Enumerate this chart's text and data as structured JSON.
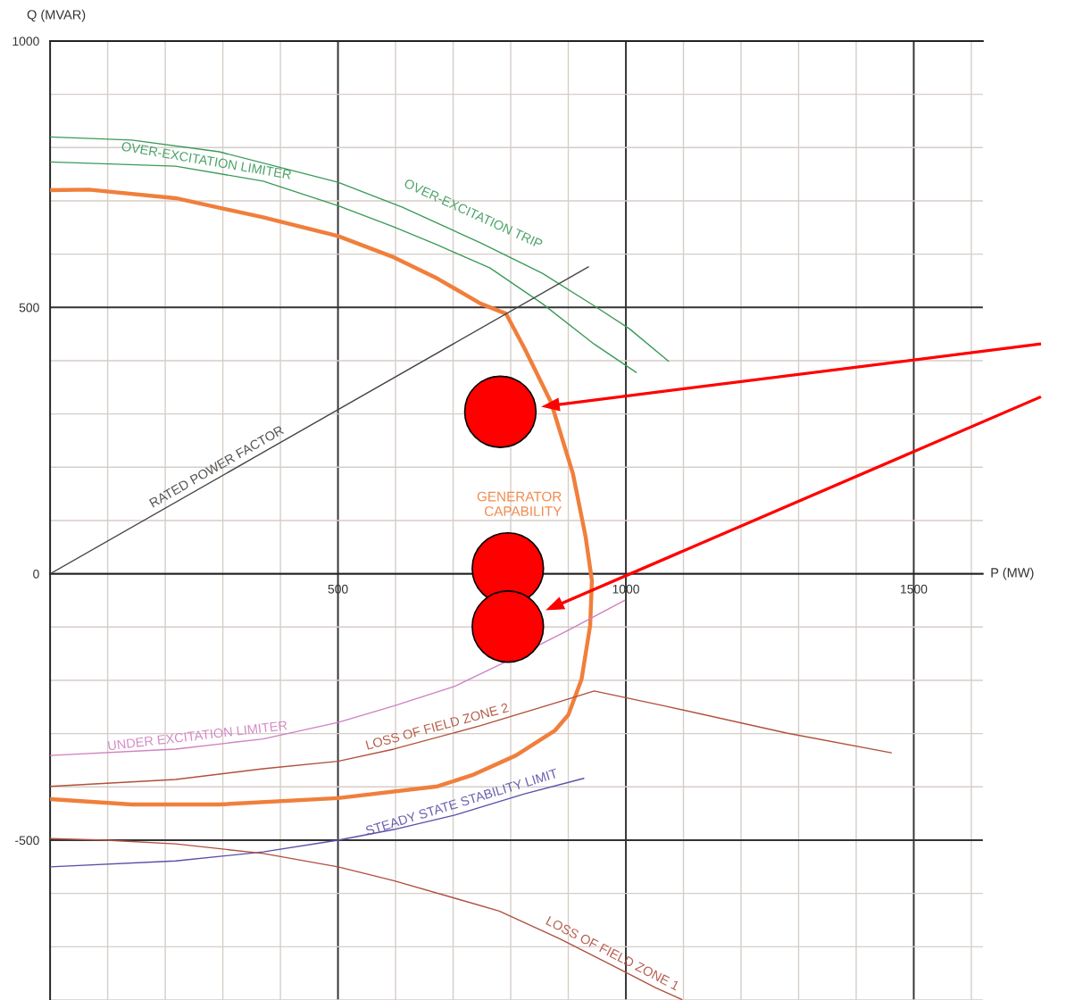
{
  "chart_data": {
    "type": "line",
    "xlabel": "P (MW)",
    "ylabel": "Q (MVAR)",
    "xlim": [
      0,
      1620
    ],
    "ylim": [
      -800,
      1000
    ],
    "xticks": [
      {
        "value": 100,
        "label": null
      },
      {
        "value": 200,
        "label": null
      },
      {
        "value": 300,
        "label": null
      },
      {
        "value": 400,
        "label": null
      },
      500,
      {
        "value": 600,
        "label": null
      },
      {
        "value": 700,
        "label": null
      },
      {
        "value": 800,
        "label": null
      },
      {
        "value": 900,
        "label": null
      },
      1000,
      {
        "value": 1100,
        "label": null
      },
      {
        "value": 1200,
        "label": null
      },
      {
        "value": 1300,
        "label": null
      },
      {
        "value": 1400,
        "label": null
      },
      1500,
      {
        "value": 1600,
        "label": null
      }
    ],
    "yticks": [
      {
        "value": -800,
        "label": null
      },
      {
        "value": -700,
        "label": null
      },
      {
        "value": -600,
        "label": null
      },
      -500,
      {
        "value": -400,
        "label": null
      },
      {
        "value": -300,
        "label": null
      },
      {
        "value": -200,
        "label": null
      },
      {
        "value": -100,
        "label": null
      },
      0,
      {
        "value": 100,
        "label": null
      },
      {
        "value": 200,
        "label": null
      },
      {
        "value": 300,
        "label": null
      },
      {
        "value": 400,
        "label": null
      },
      500,
      {
        "value": 600,
        "label": null
      },
      {
        "value": 700,
        "label": null
      },
      {
        "value": 800,
        "label": null
      },
      {
        "value": 900,
        "label": null
      },
      1000
    ],
    "grid": true,
    "legend": false,
    "series": [
      {
        "name": "GENERATOR\nCAPABILITY",
        "color": "#f07f3c",
        "x": [
          0,
          67,
          218,
          370,
          500,
          597,
          673,
          748,
          792,
          824,
          870,
          908,
          930,
          941,
          938,
          923,
          900,
          877,
          809,
          733,
          673,
          500,
          294,
          142,
          0
        ],
        "values": [
          720,
          721,
          705,
          669,
          634,
          594,
          554,
          507,
          488,
          423,
          322,
          188,
          70,
          -13,
          -97,
          -198,
          -265,
          -294,
          -341,
          -378,
          -399,
          -421,
          -433,
          -433,
          -423
        ]
      },
      {
        "name": "OVER-EXCITATION TRIP",
        "color": "#3a9a5a",
        "x": [
          0,
          142,
          294,
          500,
          612,
          748,
          855,
          945,
          1006,
          1074
        ],
        "values": [
          820,
          814,
          792,
          735,
          688,
          621,
          564,
          503,
          460,
          399
        ]
      },
      {
        "name": "OVER-EXCITATION LIMITER",
        "color": "#3a9a5a",
        "x": [
          0,
          218,
          370,
          500,
          597,
          673,
          764,
          855,
          945,
          1018
        ],
        "values": [
          773,
          765,
          737,
          691,
          651,
          617,
          574,
          507,
          431,
          378
        ]
      },
      {
        "name": "RATED POWER FACTOR",
        "color": "#444444",
        "x": [
          0,
          935
        ],
        "values": [
          0,
          576
        ]
      },
      {
        "name": "UNDER EXCITATION LIMITER",
        "color": "#d080c0",
        "x": [
          0,
          218,
          370,
          500,
          597,
          703,
          794,
          900,
          998
        ],
        "values": [
          -341,
          -329,
          -310,
          -279,
          -248,
          -211,
          -164,
          -106,
          -50
        ]
      },
      {
        "name": "LOSS OF FIELD ZONE 2",
        "color": "#b0503a",
        "x": [
          0,
          218,
          370,
          500,
          597,
          748,
          885,
          945,
          1067,
          1279,
          1461
        ],
        "values": [
          -399,
          -386,
          -366,
          -352,
          -329,
          -285,
          -240,
          -220,
          -248,
          -299,
          -336
        ]
      },
      {
        "name": "STEADY STATE STABILITY LIMIT",
        "color": "#5b4fa8",
        "x": [
          0,
          218,
          370,
          500,
          597,
          703,
          824,
          927
        ],
        "values": [
          -550,
          -539,
          -522,
          -500,
          -480,
          -453,
          -413,
          -384
        ]
      },
      {
        "name": "LOSS OF FIELD ZONE 1",
        "color": "#b05040",
        "x": [
          0,
          97,
          218,
          370,
          500,
          597,
          703,
          780,
          885,
          976,
          1052,
          1097
        ],
        "values": [
          -497,
          -500,
          -507,
          -525,
          -550,
          -576,
          -609,
          -633,
          -685,
          -735,
          -777,
          -799
        ]
      },
      {
        "type": "scatter",
        "color": "#ff0000",
        "marker": "circle",
        "x": [
          782,
          795,
          795
        ],
        "values": [
          304,
          10,
          -99
        ]
      }
    ]
  }
}
